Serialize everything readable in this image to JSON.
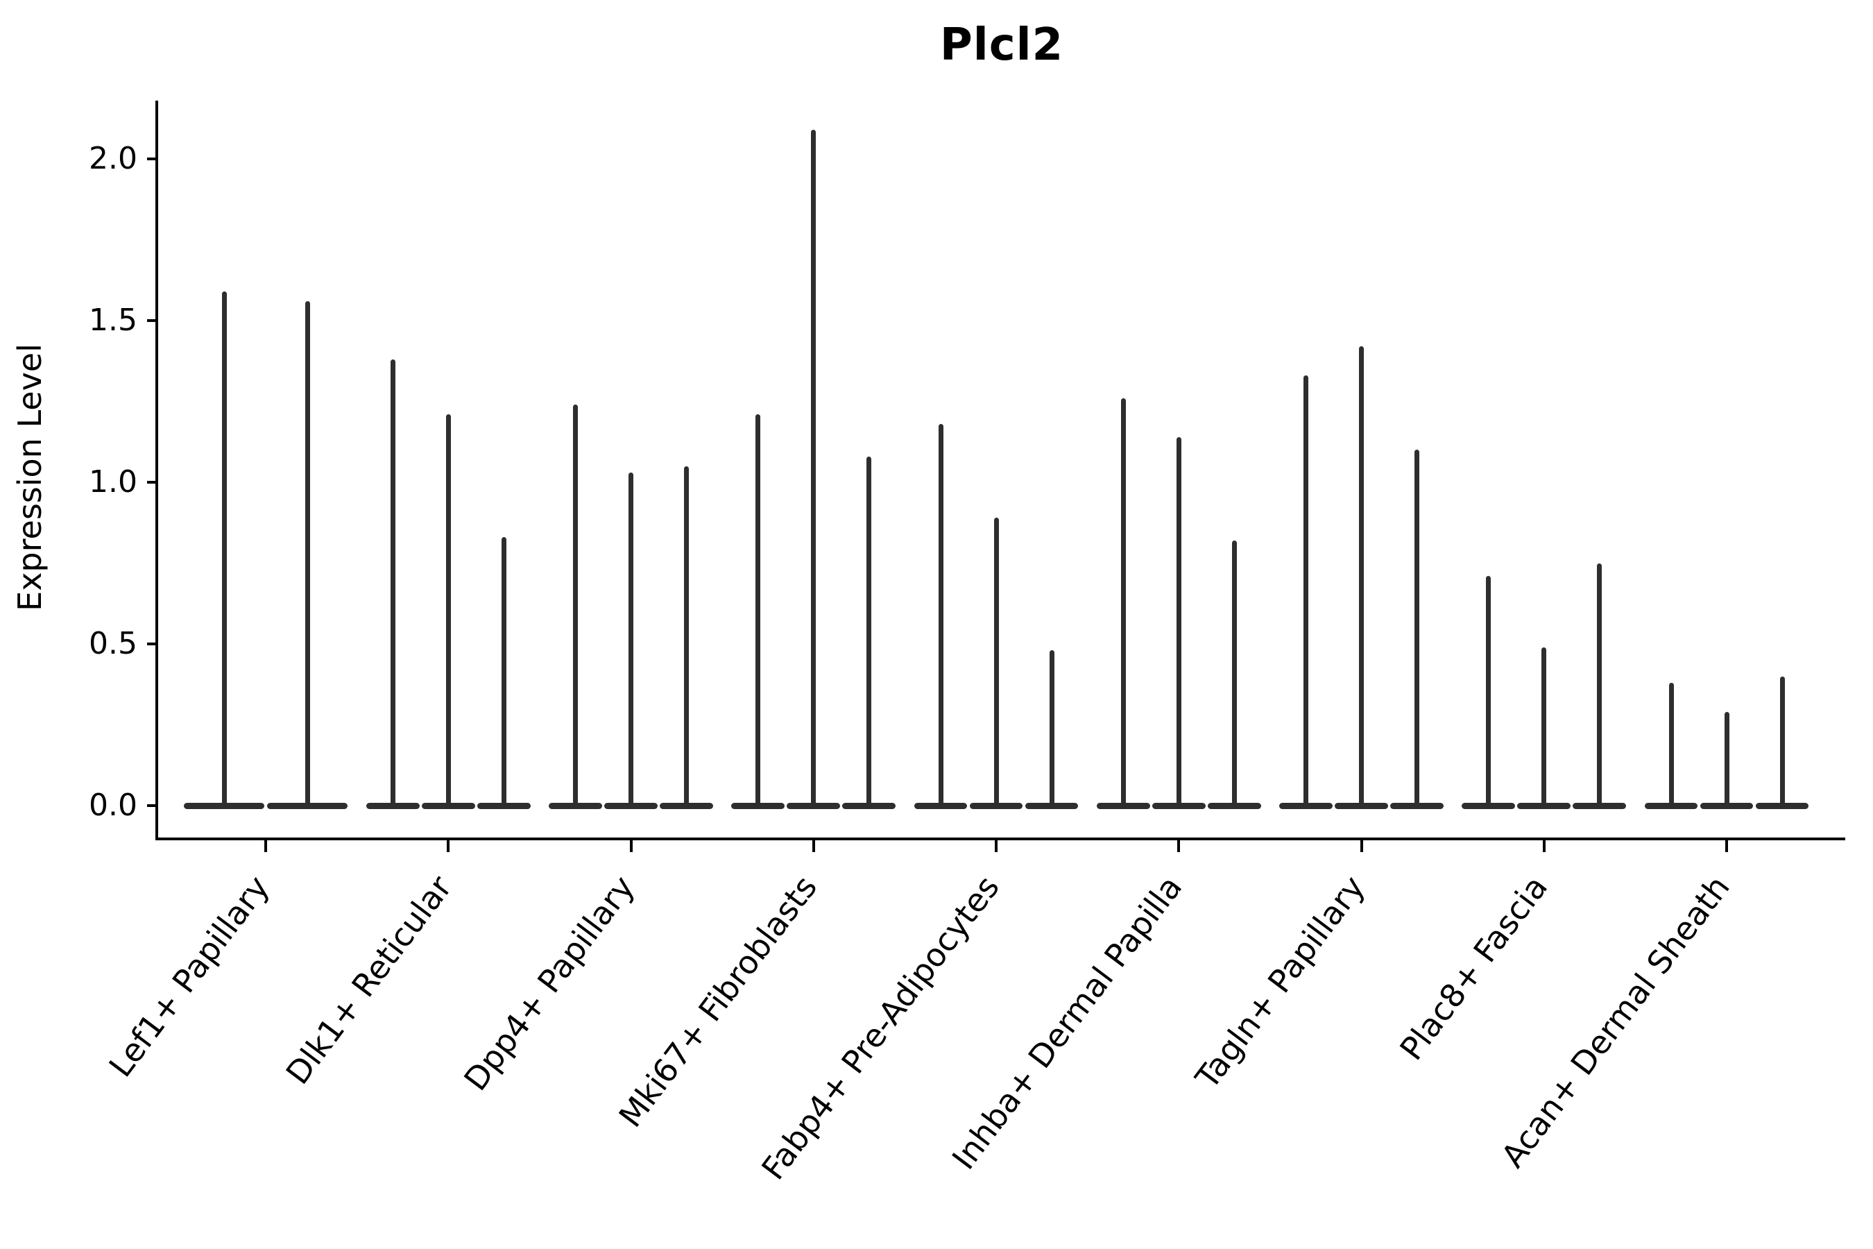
{
  "colors": {
    "violin": "#2e2e2e",
    "axis": "#000000",
    "background": "#ffffff"
  },
  "chart_data": {
    "type": "violin",
    "title": "Plcl2",
    "xlabel": "",
    "ylabel": "Expression Level",
    "ytick_labels": [
      "0.0",
      "0.5",
      "1.0",
      "1.5",
      "2.0"
    ],
    "ytick_values": [
      0.0,
      0.5,
      1.0,
      1.5,
      2.0
    ],
    "ylim": [
      -0.1,
      2.17
    ],
    "grid": false,
    "legend": null,
    "style_note": "needle-thin violins: flat lens at 0 with thin spike up to max expression",
    "categories": [
      {
        "label": "Lef1+ Papillary",
        "violin_max_values": [
          1.59,
          1.56
        ]
      },
      {
        "label": "Dlk1+ Reticular",
        "violin_max_values": [
          1.38,
          1.21,
          0.83
        ]
      },
      {
        "label": "Dpp4+ Papillary",
        "violin_max_values": [
          1.24,
          1.03,
          1.05
        ]
      },
      {
        "label": "Mki67+ Fibroblasts",
        "violin_max_values": [
          1.21,
          2.09,
          1.08
        ]
      },
      {
        "label": "Fabp4+ Pre-Adipocytes",
        "violin_max_values": [
          1.18,
          0.89,
          0.48
        ]
      },
      {
        "label": "Inhba+ Dermal Papilla",
        "violin_max_values": [
          1.26,
          1.14,
          0.82
        ]
      },
      {
        "label": "Tagln+ Papillary",
        "violin_max_values": [
          1.33,
          1.42,
          1.1
        ]
      },
      {
        "label": "Plac8+ Fascia",
        "violin_max_values": [
          0.71,
          0.49,
          0.75
        ]
      },
      {
        "label": "Acan+ Dermal Sheath",
        "violin_max_values": [
          0.38,
          0.29,
          0.4
        ]
      }
    ]
  }
}
